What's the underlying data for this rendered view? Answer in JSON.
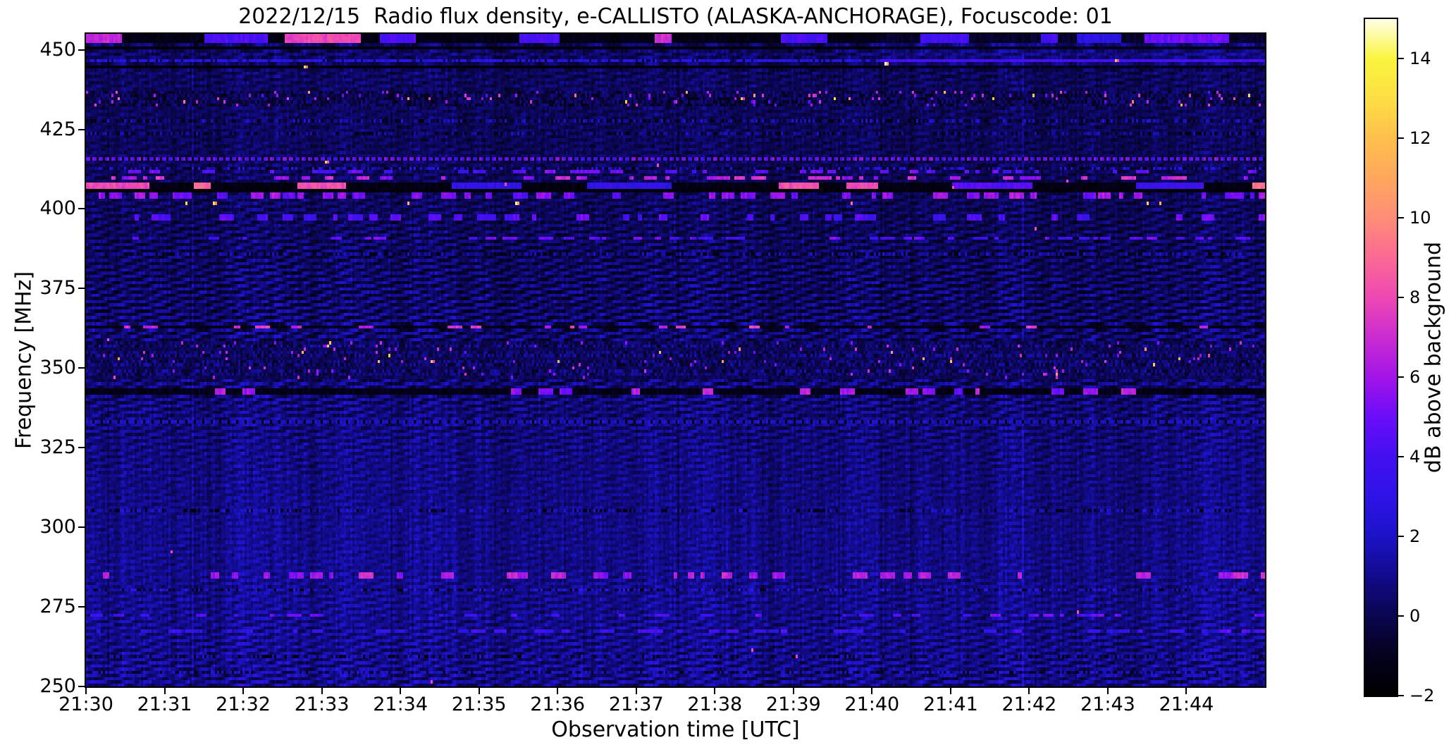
{
  "title": "2022/12/15  Radio flux density, e-CALLISTO (ALASKA-ANCHORAGE), Focuscode: 01",
  "chart_data": {
    "type": "heatmap",
    "title": "2022/12/15  Radio flux density, e-CALLISTO (ALASKA-ANCHORAGE), Focuscode: 01",
    "xlabel": "Observation time [UTC]",
    "ylabel": "Frequency [MHz]",
    "x_tick_labels": [
      "21:30",
      "21:31",
      "21:32",
      "21:33",
      "21:34",
      "21:35",
      "21:36",
      "21:37",
      "21:38",
      "21:39",
      "21:40",
      "21:41",
      "21:42",
      "21:43",
      "21:44"
    ],
    "x_tick_minutes": [
      0,
      1,
      2,
      3,
      4,
      5,
      6,
      7,
      8,
      9,
      10,
      11,
      12,
      13,
      14
    ],
    "time_span_minutes": 15,
    "y_ticks_mhz": [
      450,
      425,
      400,
      375,
      350,
      325,
      300,
      275,
      250
    ],
    "freq_range_mhz": [
      250,
      455
    ],
    "grid": false,
    "colorbar": {
      "label": "dB above background",
      "position": "right",
      "range_db": [
        -2,
        15
      ],
      "ticks_db": [
        14,
        12,
        10,
        8,
        6,
        4,
        2,
        0,
        -2
      ],
      "tick_labels": [
        "14",
        "12",
        "10",
        "8",
        "6",
        "4",
        "2",
        "0",
        "−2"
      ],
      "colormap": "gnuplot2",
      "stops": [
        [
          -2,
          "#000000"
        ],
        [
          -1,
          "#05021e"
        ],
        [
          0,
          "#0b0650"
        ],
        [
          1,
          "#120b8c"
        ],
        [
          2,
          "#1c13c8"
        ],
        [
          3,
          "#2f14e8"
        ],
        [
          4,
          "#4310f0"
        ],
        [
          5,
          "#6b0dfa"
        ],
        [
          6,
          "#a315e8"
        ],
        [
          7,
          "#cb2cd2"
        ],
        [
          8,
          "#ef48b4"
        ],
        [
          9,
          "#fb6a95"
        ],
        [
          10,
          "#ff8d78"
        ],
        [
          11,
          "#ffa75e"
        ],
        [
          12,
          "#ffc04d"
        ],
        [
          13,
          "#fede44"
        ],
        [
          14,
          "#faf53e"
        ],
        [
          15,
          "#ffffe6"
        ]
      ]
    },
    "heatmap": {
      "description": "Quiet-sun radio spectrogram: wavy blue interference fringes (about -2 to 3 dB) over the full band with narrowband horizontal RFI lines and speckle bands",
      "base_db_range": [
        -2,
        3.2
      ],
      "wave": {
        "stripe_period_mhz": 2.17,
        "undulation_period_min": 0.52,
        "undulation_period2_min": 2.3,
        "amp_db": 1.05
      },
      "rfi_lines": [
        {
          "freq": 453.6,
          "width": 3.2,
          "style": "segments",
          "strength": 7,
          "alt_strength": 3,
          "background_db": -1.6
        },
        {
          "freq": 450.9,
          "width": 1.1,
          "style": "dark"
        },
        {
          "freq": 446.1,
          "width": 1.0,
          "style": "line",
          "strength": 2.6,
          "boost_after": 10.1
        },
        {
          "freq": 444.4,
          "width": 0.9,
          "style": "dark"
        },
        {
          "freq": 434.6,
          "width": 5.6,
          "style": "speckle",
          "p_bright": 0.045,
          "strength": 5
        },
        {
          "freq": 427.6,
          "width": 1.0,
          "style": "dots",
          "strength": 1.6
        },
        {
          "freq": 424.0,
          "width": 1.0,
          "style": "dots",
          "strength": 1.2
        },
        {
          "freq": 415.6,
          "width": 1.5,
          "style": "dashes",
          "strength": 4.6,
          "period": 3
        },
        {
          "freq": 413.0,
          "width": 1.0,
          "style": "dots",
          "strength": 2.0
        },
        {
          "freq": 411.4,
          "width": 1.1,
          "style": "sparse_segments",
          "strength": 4.5,
          "p": 0.1
        },
        {
          "freq": 409.7,
          "width": 1.1,
          "style": "sparse_segments",
          "strength": 6.5,
          "p": 0.07
        },
        {
          "freq": 407.6,
          "width": 1.9,
          "style": "segments",
          "strength": 8.5,
          "alt_strength": 3.2,
          "background_db": -1.7
        },
        {
          "freq": 405.9,
          "width": 1.0,
          "style": "dark"
        },
        {
          "freq": 404.2,
          "width": 1.1,
          "style": "sparse_segments",
          "strength": 5.5,
          "p": 0.11
        },
        {
          "freq": 402.2,
          "width": 1.0,
          "style": "hotdots",
          "p": 0.01,
          "strength": 11
        },
        {
          "freq": 397.2,
          "width": 1.2,
          "style": "sparse_segments",
          "strength": 4.6,
          "p": 0.1
        },
        {
          "freq": 391.2,
          "width": 1.2,
          "style": "sparse_segments",
          "strength": 4.4,
          "p": 0.09
        },
        {
          "freq": 385.8,
          "width": 1.0,
          "style": "dots",
          "strength": 1.4
        },
        {
          "freq": 363.0,
          "width": 1.3,
          "style": "sparse_segments",
          "strength": 7,
          "p": 0.05,
          "background_db": -1.5
        },
        {
          "freq": 342.4,
          "width": 1.4,
          "style": "sparse_segments",
          "strength": 6,
          "p": 0.05,
          "background_db": -1.6
        },
        {
          "freq": 333.0,
          "width": 1.5,
          "style": "dashes",
          "strength": 1.9,
          "period": 4
        },
        {
          "freq": 305.6,
          "width": 1.1,
          "style": "dots",
          "strength": 1.7
        },
        {
          "freq": 285.1,
          "width": 1.7,
          "style": "sparse_segments",
          "strength": 6.4,
          "p": 0.07
        },
        {
          "freq": 280.6,
          "width": 1.0,
          "style": "dots",
          "strength": 2.2
        },
        {
          "freq": 272.1,
          "width": 1.2,
          "style": "sparse_segments",
          "strength": 4.6,
          "p": 0.08
        },
        {
          "freq": 267.1,
          "width": 1.2,
          "style": "sparse_segments",
          "strength": 3.6,
          "p": 0.1
        },
        {
          "freq": 259.5,
          "width": 1.0,
          "style": "dots",
          "strength": 1.4
        },
        {
          "freq": 254.1,
          "width": 1.1,
          "style": "dots",
          "strength": 1.8
        }
      ],
      "speckle_bands": [
        {
          "range": [
            358.6,
            346.2
          ],
          "p_bright": 0.02
        }
      ],
      "haze": {
        "f_min": 443.6,
        "t_min": 10.1,
        "add": 0.55
      },
      "hot_pixels": [
        {
          "t": 1.62,
          "f": 402.3,
          "db": 13.5
        },
        {
          "t": 2.77,
          "f": 444.6,
          "db": 13.0
        },
        {
          "t": 10.17,
          "f": 445.9,
          "db": 15.0
        },
        {
          "t": 3.05,
          "f": 415.6,
          "db": 12.5
        },
        {
          "t": 5.45,
          "f": 401.8,
          "db": 14.5
        },
        {
          "t": 13.1,
          "f": 447.3,
          "db": 12.0
        },
        {
          "t": 4.38,
          "f": 352.4,
          "db": 12.0
        }
      ]
    }
  }
}
